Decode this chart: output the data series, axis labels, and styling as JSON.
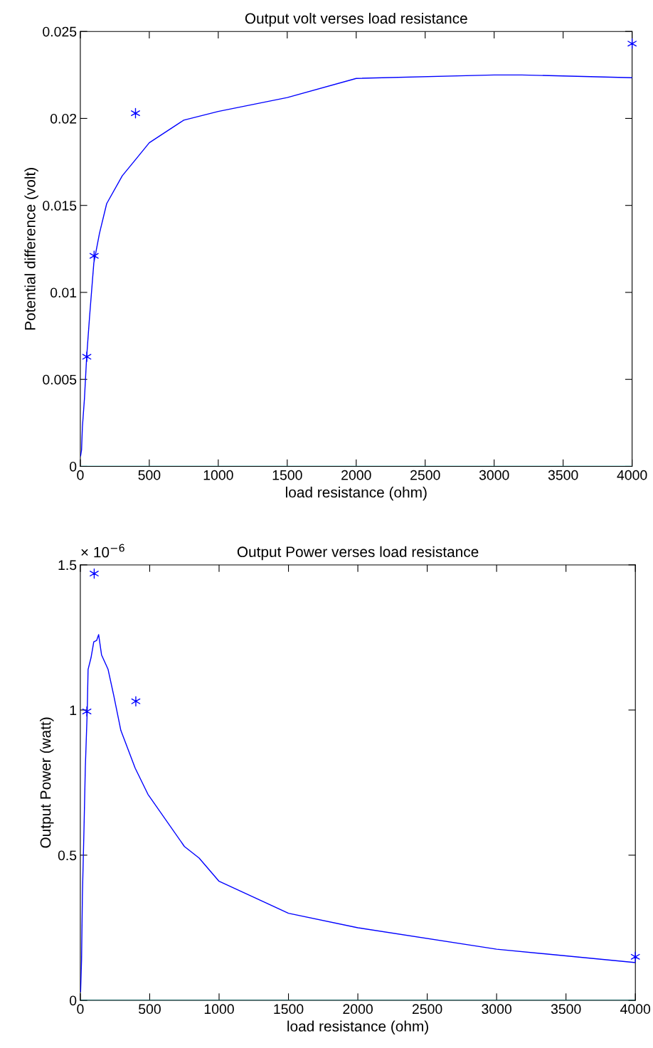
{
  "chart_data": [
    {
      "type": "line",
      "title": "Output volt verses load resistance",
      "xlabel": "load resistance (ohm)",
      "ylabel": "Potential difference (volt)",
      "xlim": [
        0,
        4000
      ],
      "xticks": [
        0,
        500,
        1000,
        1500,
        2000,
        2500,
        3000,
        3500,
        4000
      ],
      "ylim": [
        0,
        0.025
      ],
      "yticks": [
        0,
        0.005,
        0.01,
        0.015,
        0.02,
        0.025
      ],
      "grid": false,
      "legend": false,
      "series": [
        {
          "color": "#0000ff",
          "marker": "none",
          "line_style": "solid",
          "x": [
            2,
            9,
            15,
            30,
            46,
            67,
            98,
            139,
            191,
            304,
            397,
            500,
            750,
            1000,
            1500,
            2000,
            3000,
            3200,
            4000
          ],
          "values": [
            0.0006,
            0.00094,
            0.00225,
            0.0039,
            0.0063,
            0.0086,
            0.0117,
            0.0134,
            0.0151,
            0.0167,
            0.0176,
            0.0186,
            0.0199,
            0.0204,
            0.0212,
            0.0223,
            0.0225,
            0.0225,
            0.02234
          ]
        },
        {
          "type": "scatter",
          "color": "#0000ff",
          "marker": "cross",
          "x": [
            47,
            100,
            400,
            4000
          ],
          "values": [
            0.0063,
            0.0121,
            0.0203,
            0.0243
          ]
        }
      ],
      "ref_lines": [
        {
          "axis": "y",
          "value": 0,
          "color": "#00bfbf"
        }
      ]
    },
    {
      "type": "line",
      "title": "Output Power verses load resistance",
      "xlabel": "load resistance (ohm)",
      "ylabel": "Output Power (watt)",
      "annotations": [
        "× 10$^{−6}$"
      ],
      "xlim": [
        0,
        4000
      ],
      "xticks": [
        0,
        500,
        1000,
        1500,
        2000,
        2500,
        3000,
        3500,
        4000
      ],
      "ylim": [
        0,
        1.5
      ],
      "yticks": [
        0,
        0.5,
        1,
        1.5
      ],
      "grid": false,
      "legend": false,
      "series": [
        {
          "color": "#0000ff",
          "marker": "none",
          "line_style": "solid",
          "x": [
            2,
            9,
            15,
            26,
            36,
            50,
            56,
            77,
            97,
            118,
            132,
            153,
            200,
            241,
            292,
            395,
            487,
            750,
            856,
            1000,
            1500,
            2000,
            3000,
            4000
          ],
          "values": [
            0.03,
            0.14,
            0.36,
            0.58,
            0.8,
            1.0,
            1.14,
            1.18,
            1.235,
            1.24,
            1.26,
            1.19,
            1.14,
            1.05,
            0.93,
            0.8,
            0.71,
            0.53,
            0.49,
            0.41,
            0.3,
            0.25,
            0.176,
            0.13
          ]
        },
        {
          "type": "scatter",
          "color": "#0000ff",
          "marker": "cross",
          "x": [
            47,
            100,
            400,
            4000
          ],
          "values": [
            0.995,
            1.47,
            1.03,
            0.15
          ]
        }
      ],
      "ref_lines": [
        {
          "axis": "y",
          "value": 0,
          "color": "#00bfbf"
        }
      ]
    }
  ]
}
